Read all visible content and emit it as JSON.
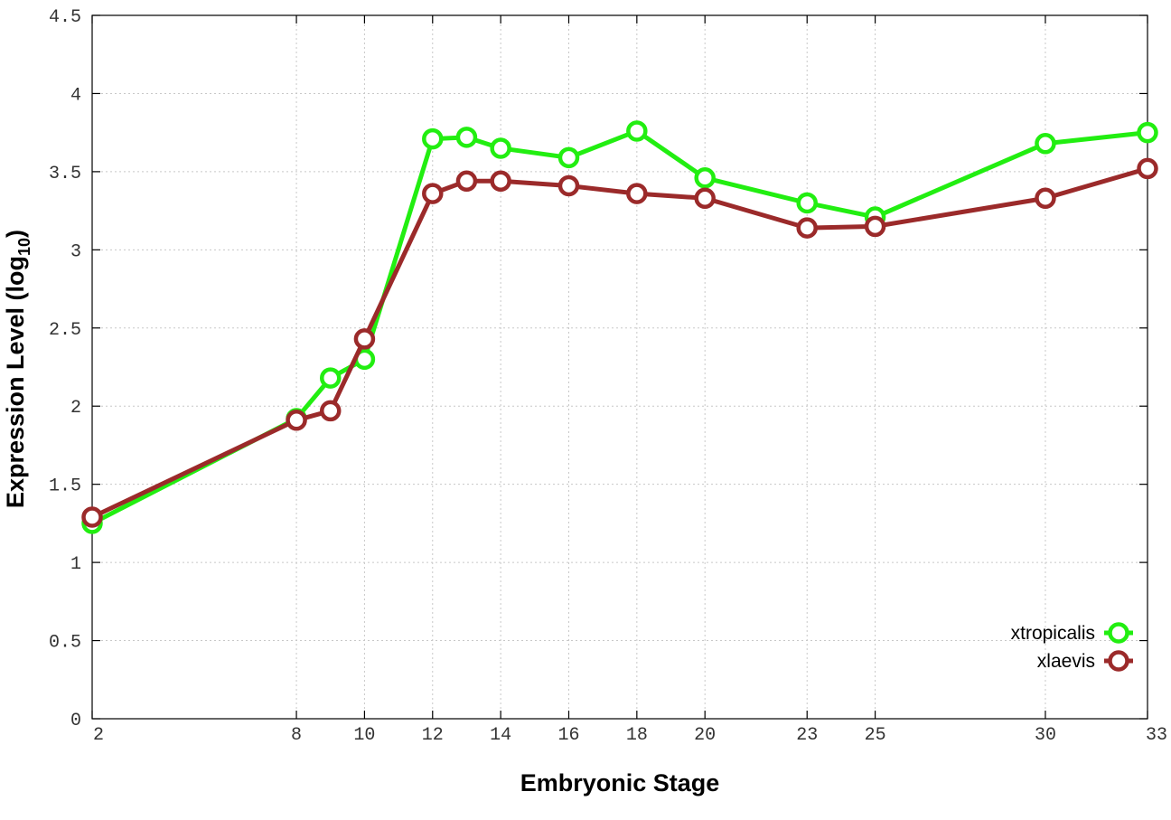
{
  "chart_data": {
    "type": "line",
    "xlabel": "Embryonic Stage",
    "ylabel_main": "Expression Level (log",
    "ylabel_sub": "10",
    "ylabel_close": ")",
    "xlim": [
      2,
      33
    ],
    "ylim": [
      0,
      4.5
    ],
    "x_ticks": [
      2,
      8,
      10,
      12,
      14,
      16,
      18,
      20,
      23,
      25,
      30,
      33
    ],
    "y_ticks": [
      0,
      0.5,
      1,
      1.5,
      2,
      2.5,
      3,
      3.5,
      4,
      4.5
    ],
    "y_tick_labels": [
      "0",
      "0.5",
      "1",
      "1.5",
      "2",
      "2.5",
      "3",
      "3.5",
      "4",
      "4.5"
    ],
    "grid": true,
    "legend_position": "bottom-right",
    "x": [
      2,
      8,
      9,
      10,
      12,
      13,
      14,
      16,
      18,
      20,
      23,
      25,
      30,
      33
    ],
    "series": [
      {
        "name": "xtropicalis",
        "color": "#22ee11",
        "values": [
          1.25,
          1.92,
          2.18,
          2.3,
          3.71,
          3.72,
          3.65,
          3.59,
          3.76,
          3.46,
          3.3,
          3.21,
          3.68,
          3.75
        ]
      },
      {
        "name": "xlaevis",
        "color": "#9b2a2a",
        "values": [
          1.29,
          1.91,
          1.97,
          2.43,
          3.36,
          3.44,
          3.44,
          3.41,
          3.36,
          3.33,
          3.14,
          3.15,
          3.33,
          3.52
        ]
      }
    ]
  }
}
